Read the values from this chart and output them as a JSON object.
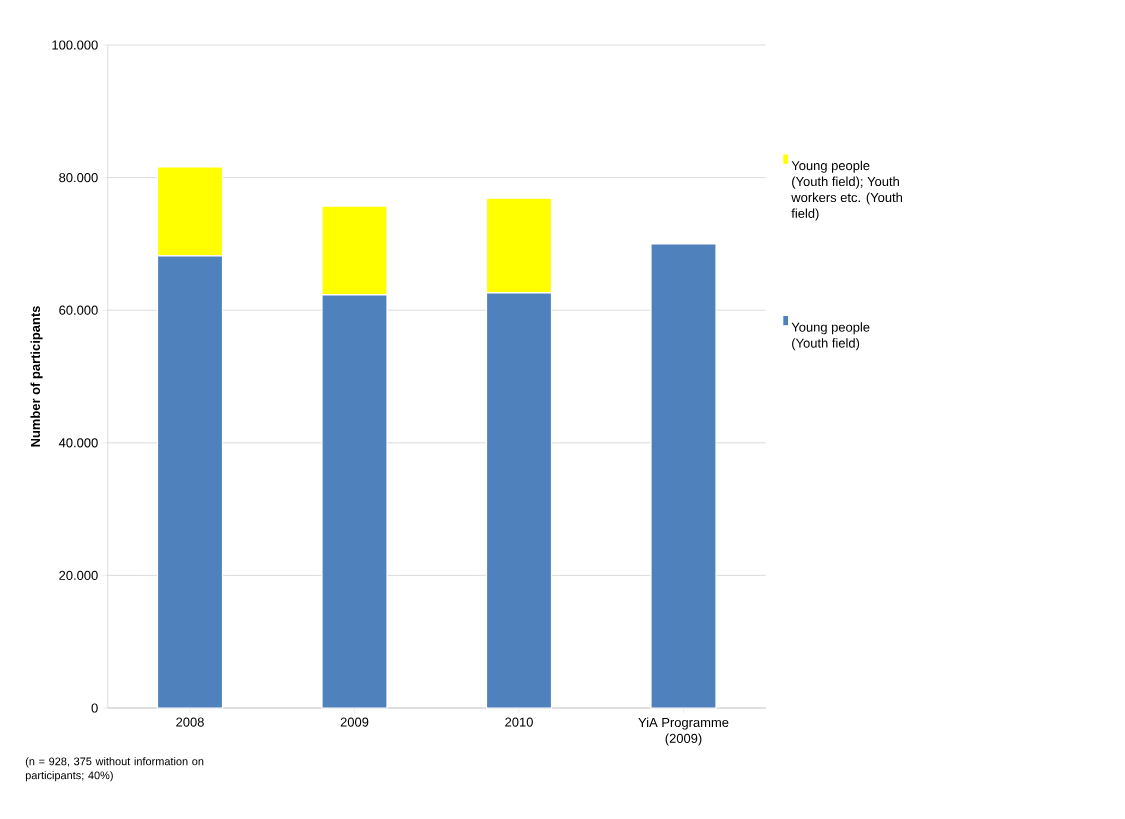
{
  "chart_data": {
    "type": "bar",
    "stacked": true,
    "ylabel": "Number of participants",
    "categories": [
      "2008",
      "2009",
      "2010",
      "YiA Programme (2009)"
    ],
    "series": [
      {
        "name": "Young people (Youth field)",
        "color": "#4f81bd",
        "values": [
          68200,
          62300,
          62600,
          70000
        ]
      },
      {
        "name": "Young people (Youth field); Youth workers etc. (Youth field)",
        "color": "#ffff00",
        "values": [
          13400,
          13400,
          14300,
          null
        ]
      }
    ],
    "ylim": [
      0,
      100000
    ],
    "yticks": [
      0,
      {
        "value": 20000,
        "label": "20.000"
      },
      {
        "value": 40000,
        "label": "40.000"
      },
      {
        "value": 60000,
        "label": "60.000"
      },
      {
        "value": 80000,
        "label": "80.000"
      },
      {
        "value": 100000,
        "label": "100.000"
      }
    ],
    "grid": "y",
    "legend": "right",
    "annotations": [
      "(n = 928, 375 without information on participants; 40%)"
    ]
  }
}
